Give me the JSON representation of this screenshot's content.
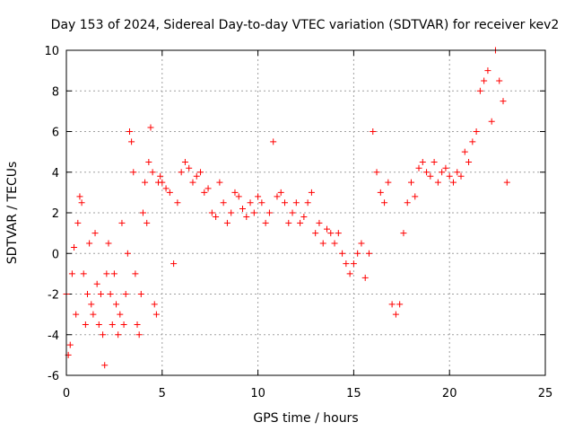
{
  "chart_data": {
    "type": "scatter",
    "title": "Day 153 of 2024, Sidereal Day-to-day VTEC variation (SDTVAR) for receiver kev2",
    "xlabel": "GPS time / hours",
    "ylabel": "SDTVAR / TECUs",
    "xlim": [
      0,
      25
    ],
    "ylim": [
      -6,
      10
    ],
    "xticks": [
      0,
      5,
      10,
      15,
      20,
      25
    ],
    "yticks": [
      -6,
      -4,
      -2,
      0,
      2,
      4,
      6,
      8,
      10
    ],
    "grid": true,
    "marker": "+",
    "color": "#ff0000",
    "series": [
      {
        "name": "SDTVAR",
        "x": [
          0.0,
          0.1,
          0.2,
          0.3,
          0.4,
          0.5,
          0.6,
          0.7,
          0.8,
          0.9,
          1.0,
          1.1,
          1.2,
          1.3,
          1.4,
          1.5,
          1.6,
          1.7,
          1.8,
          1.9,
          2.0,
          2.1,
          2.2,
          2.3,
          2.4,
          2.5,
          2.6,
          2.7,
          2.8,
          2.9,
          3.0,
          3.1,
          3.2,
          3.3,
          3.4,
          3.5,
          3.6,
          3.7,
          3.8,
          3.9,
          4.0,
          4.1,
          4.2,
          4.3,
          4.4,
          4.5,
          4.6,
          4.7,
          4.8,
          4.9,
          5.0,
          5.2,
          5.4,
          5.6,
          5.8,
          6.0,
          6.2,
          6.4,
          6.6,
          6.8,
          7.0,
          7.2,
          7.4,
          7.6,
          7.8,
          8.0,
          8.2,
          8.4,
          8.6,
          8.8,
          9.0,
          9.2,
          9.4,
          9.6,
          9.8,
          10.0,
          10.2,
          10.4,
          10.6,
          10.8,
          11.0,
          11.2,
          11.4,
          11.6,
          11.8,
          12.0,
          12.2,
          12.4,
          12.6,
          12.8,
          13.0,
          13.2,
          13.4,
          13.6,
          13.8,
          14.0,
          14.2,
          14.4,
          14.6,
          14.8,
          15.0,
          15.2,
          15.4,
          15.6,
          15.8,
          16.0,
          16.2,
          16.4,
          16.6,
          16.8,
          17.0,
          17.2,
          17.4,
          17.6,
          17.8,
          18.0,
          18.2,
          18.4,
          18.6,
          18.8,
          19.0,
          19.2,
          19.4,
          19.6,
          19.8,
          20.0,
          20.2,
          20.4,
          20.6,
          20.8,
          21.0,
          21.2,
          21.4,
          21.6,
          21.8,
          22.0,
          22.2,
          22.4,
          22.6,
          22.8,
          23.0
        ],
        "y": [
          -2.0,
          -5.0,
          -4.5,
          -1.0,
          0.3,
          -3.0,
          1.5,
          2.8,
          2.5,
          -1.0,
          -3.5,
          -2.0,
          0.5,
          -2.5,
          -3.0,
          1.0,
          -1.5,
          -3.5,
          -2.0,
          -4.0,
          -5.5,
          -1.0,
          0.5,
          -2.0,
          -3.5,
          -1.0,
          -2.5,
          -4.0,
          -3.0,
          1.5,
          -3.5,
          -2.0,
          0.0,
          6.0,
          5.5,
          4.0,
          -1.0,
          -3.5,
          -4.0,
          -2.0,
          2.0,
          3.5,
          1.5,
          4.5,
          6.2,
          4.0,
          -2.5,
          -3.0,
          3.5,
          3.8,
          3.5,
          3.2,
          3.0,
          -0.5,
          2.5,
          4.0,
          4.5,
          4.2,
          3.5,
          3.8,
          4.0,
          3.0,
          3.2,
          2.0,
          1.8,
          3.5,
          2.5,
          1.5,
          2.0,
          3.0,
          2.8,
          2.2,
          1.8,
          2.5,
          2.0,
          2.8,
          2.5,
          1.5,
          2.0,
          5.5,
          2.8,
          3.0,
          2.5,
          1.5,
          2.0,
          2.5,
          1.5,
          1.8,
          2.5,
          3.0,
          1.0,
          1.5,
          0.5,
          1.2,
          1.0,
          0.5,
          1.0,
          0.0,
          -0.5,
          -1.0,
          -0.5,
          0.0,
          0.5,
          -1.2,
          0.0,
          6.0,
          4.0,
          3.0,
          2.5,
          3.5,
          -2.5,
          -3.0,
          -2.5,
          1.0,
          2.5,
          3.5,
          2.8,
          4.2,
          4.5,
          4.0,
          3.8,
          4.5,
          3.5,
          4.0,
          4.2,
          3.8,
          3.5,
          4.0,
          3.8,
          5.0,
          4.5,
          5.5,
          6.0,
          8.0,
          8.5,
          9.0,
          6.5,
          10.0,
          8.5,
          7.5,
          3.5
        ]
      }
    ]
  }
}
